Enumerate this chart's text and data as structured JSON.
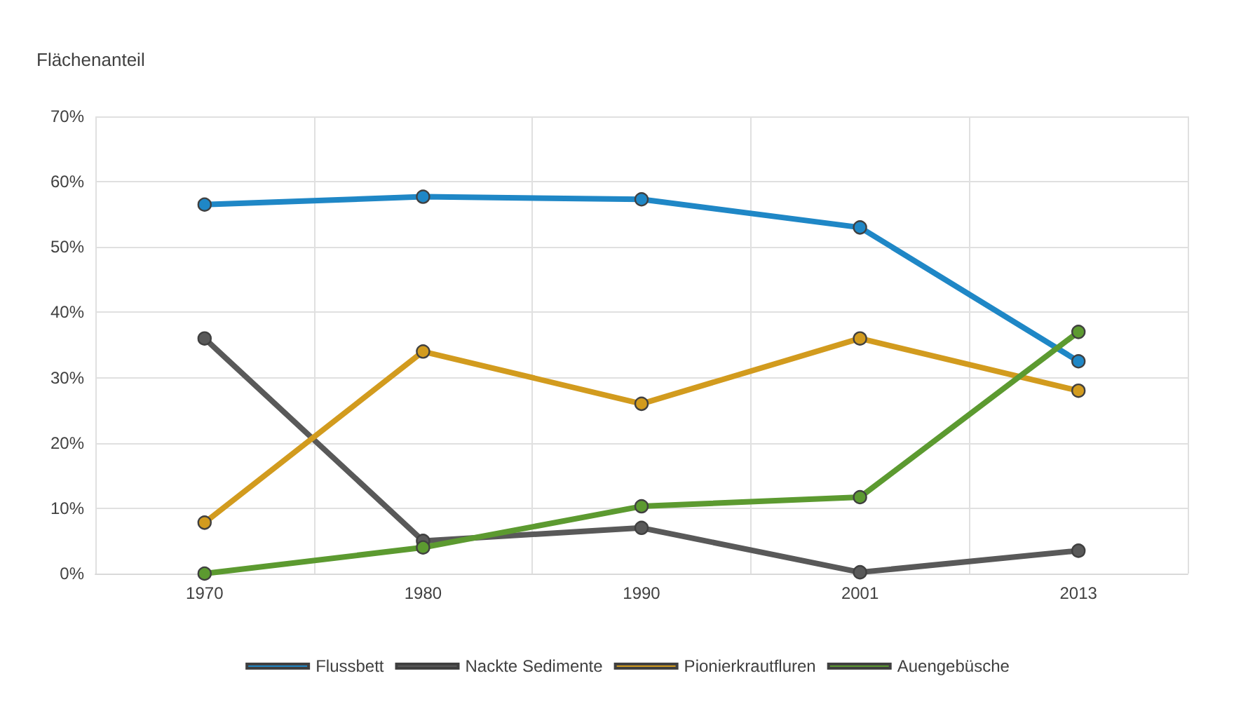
{
  "chart_data": {
    "type": "line",
    "ylabel": "Flächenanteil",
    "categories": [
      "1970",
      "1980",
      "1990",
      "2001",
      "2013"
    ],
    "series": [
      {
        "name": "Flussbett",
        "color": "#1f87c6",
        "values": [
          56.5,
          57.7,
          57.3,
          53,
          32.5
        ]
      },
      {
        "name": "Nackte Sedimente",
        "color": "#595959",
        "values": [
          36,
          5,
          7,
          0.2,
          3.5
        ]
      },
      {
        "name": "Pionierkrautfluren",
        "color": "#d29b1e",
        "values": [
          7.8,
          34,
          26,
          36,
          28
        ]
      },
      {
        "name": "Auengebüsche",
        "color": "#5c9a30",
        "values": [
          0,
          4,
          10.3,
          11.7,
          37
        ]
      }
    ],
    "ylim": [
      0,
      70
    ],
    "yticks": [
      {
        "value": 0,
        "label": "0%"
      },
      {
        "value": 10,
        "label": "10%"
      },
      {
        "value": 20,
        "label": "20%"
      },
      {
        "value": 30,
        "label": "30%"
      },
      {
        "value": 40,
        "label": "40%"
      },
      {
        "value": 50,
        "label": "50%"
      },
      {
        "value": 60,
        "label": "60%"
      },
      {
        "value": 70,
        "label": "70%"
      }
    ],
    "grid": true,
    "legend": "bottom",
    "marker": "circle",
    "line_style": "solid"
  }
}
